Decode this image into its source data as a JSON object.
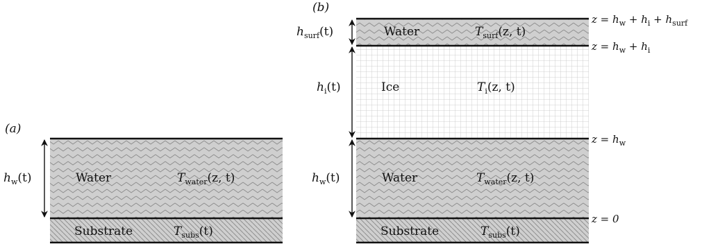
{
  "panel_a": {
    "tag": "(a)",
    "water_height": {
      "base": "h",
      "sub": "w",
      "arg": "(t)"
    },
    "water_label": "Water",
    "water_temp": {
      "base": "T",
      "sub": "water",
      "arg": "(z, t)"
    },
    "substrate_label": "Substrate",
    "substrate_temp": {
      "base": "T",
      "sub": "subs",
      "arg": "(t)"
    }
  },
  "panel_b": {
    "tag": "(b)",
    "surf_height": {
      "base": "h",
      "sub": "surf",
      "arg": "(t)"
    },
    "surf_label": "Water",
    "surf_temp": {
      "base": "T",
      "sub": "surf",
      "arg": "(z, t)"
    },
    "ice_height": {
      "base": "h",
      "sub": "i",
      "arg": "(t)"
    },
    "ice_label": "Ice",
    "ice_temp": {
      "base": "T",
      "sub": "i",
      "arg": "(z, t)"
    },
    "water_height": {
      "base": "h",
      "sub": "w",
      "arg": "(t)"
    },
    "water_label": "Water",
    "water_temp": {
      "base": "T",
      "sub": "water",
      "arg": "(z, t)"
    },
    "substrate_label": "Substrate",
    "substrate_temp": {
      "base": "T",
      "sub": "subs",
      "arg": "(t)"
    },
    "levels": {
      "top": {
        "prefix": "z = ",
        "t1": "h",
        "s1": "w",
        "t2": " + h",
        "s2": "i",
        "t3": " + h",
        "s3": "surf"
      },
      "ice_top": {
        "prefix": "z = ",
        "t1": "h",
        "s1": "w",
        "t2": " + h",
        "s2": "i"
      },
      "water_top": {
        "prefix": "z = ",
        "t1": "h",
        "s1": "w"
      },
      "bottom": {
        "prefix": "z = 0"
      }
    }
  },
  "colors": {
    "layer_fill": "#cfcfcf",
    "wave_stroke": "#8f8f8f",
    "hatch_stroke": "#8f8f8f",
    "ice_grid": "#c4c4c4",
    "boundary": "#111111"
  }
}
